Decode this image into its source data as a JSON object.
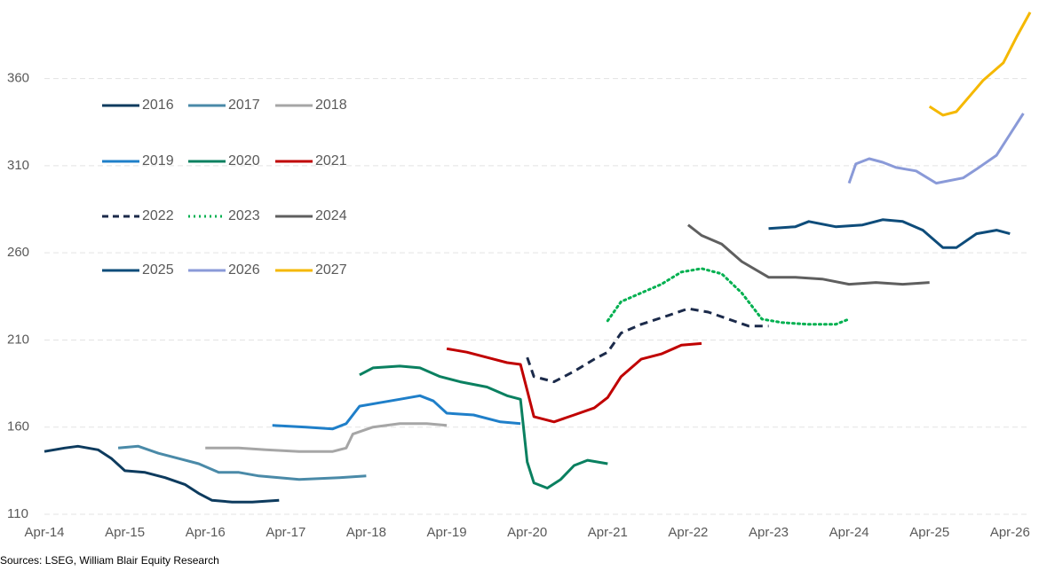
{
  "chart_data": {
    "type": "line",
    "source": "Sources: LSEG, William Blair Equity Research",
    "xlim": [
      "Apr-14",
      "Jul-26"
    ],
    "xticks": [
      "Apr-14",
      "Apr-15",
      "Apr-16",
      "Apr-17",
      "Apr-18",
      "Apr-19",
      "Apr-20",
      "Apr-21",
      "Apr-22",
      "Apr-23",
      "Apr-24",
      "Apr-25",
      "Apr-26"
    ],
    "ylim": [
      110,
      400
    ],
    "yticks": [
      110,
      160,
      210,
      260,
      310,
      360
    ],
    "grid": true,
    "legend": "upper left",
    "series": [
      {
        "name": "2016",
        "color": "#0d3b5e",
        "dash": "solid",
        "x": [
          "Apr-14",
          "Jul-14",
          "Sep-14",
          "Dec-14",
          "Feb-15",
          "Apr-15",
          "Jul-15",
          "Oct-15",
          "Jan-16",
          "Mar-16",
          "May-16",
          "Aug-16",
          "Nov-16",
          "Mar-17"
        ],
        "values": [
          146,
          148,
          149,
          147,
          142,
          135,
          134,
          131,
          127,
          122,
          118,
          117,
          117,
          118
        ]
      },
      {
        "name": "2017",
        "color": "#4a8aa8",
        "dash": "solid",
        "x": [
          "Mar-15",
          "Jun-15",
          "Sep-15",
          "Dec-15",
          "Mar-16",
          "Jun-16",
          "Sep-16",
          "Dec-16",
          "Jun-17",
          "Dec-17",
          "Apr-18"
        ],
        "values": [
          148,
          149,
          145,
          142,
          139,
          134,
          134,
          132,
          130,
          131,
          132
        ]
      },
      {
        "name": "2018",
        "color": "#a6a6a6",
        "dash": "solid",
        "x": [
          "Apr-16",
          "Sep-16",
          "Jan-17",
          "Jun-17",
          "Nov-17",
          "Jan-18",
          "Feb-18",
          "May-18",
          "Sep-18",
          "Jan-19",
          "Apr-19"
        ],
        "values": [
          148,
          148,
          147,
          146,
          146,
          148,
          156,
          160,
          162,
          162,
          161
        ]
      },
      {
        "name": "2019",
        "color": "#1f7fc9",
        "dash": "solid",
        "x": [
          "Feb-17",
          "Jul-17",
          "Nov-17",
          "Jan-18",
          "Mar-18",
          "Jun-18",
          "Sep-18",
          "Dec-18",
          "Feb-19",
          "Apr-19",
          "Aug-19",
          "Dec-19",
          "Mar-20"
        ],
        "values": [
          161,
          160,
          159,
          162,
          172,
          174,
          176,
          178,
          175,
          168,
          167,
          163,
          162
        ]
      },
      {
        "name": "2020",
        "color": "#0a8060",
        "dash": "solid",
        "x": [
          "Mar-18",
          "May-18",
          "Sep-18",
          "Dec-18",
          "Mar-19",
          "Jun-19",
          "Oct-19",
          "Jan-20",
          "Mar-20",
          "Apr-20",
          "May-20",
          "Jul-20",
          "Sep-20",
          "Nov-20",
          "Jan-21",
          "Apr-21"
        ],
        "values": [
          190,
          194,
          195,
          194,
          189,
          186,
          183,
          178,
          176,
          140,
          128,
          125,
          130,
          138,
          141,
          139
        ]
      },
      {
        "name": "2021",
        "color": "#c00000",
        "dash": "solid",
        "x": [
          "Apr-19",
          "Jul-19",
          "Nov-19",
          "Jan-20",
          "Mar-20",
          "Apr-20",
          "May-20",
          "Aug-20",
          "Nov-20",
          "Feb-21",
          "Apr-21",
          "Jun-21",
          "Sep-21",
          "Dec-21",
          "Mar-22",
          "Jun-22"
        ],
        "values": [
          205,
          203,
          199,
          197,
          196,
          181,
          166,
          163,
          167,
          171,
          177,
          189,
          199,
          202,
          207,
          208
        ]
      },
      {
        "name": "2022",
        "color": "#1b2a4a",
        "dash": "dashed",
        "x": [
          "Apr-20",
          "May-20",
          "Aug-20",
          "Nov-20",
          "Feb-21",
          "Apr-21",
          "Jun-21",
          "Sep-21",
          "Jan-22",
          "Apr-22",
          "Jul-22",
          "Oct-22",
          "Jan-23",
          "Apr-23"
        ],
        "values": [
          200,
          189,
          186,
          192,
          199,
          203,
          214,
          219,
          224,
          228,
          226,
          222,
          218,
          218
        ]
      },
      {
        "name": "2023",
        "color": "#00b050",
        "dash": "dotted",
        "x": [
          "Apr-21",
          "Jun-21",
          "Sep-21",
          "Dec-21",
          "Mar-22",
          "Jun-22",
          "Sep-22",
          "Dec-22",
          "Mar-23",
          "Jun-23",
          "Oct-23",
          "Feb-24",
          "Apr-24"
        ],
        "values": [
          221,
          232,
          237,
          242,
          249,
          251,
          248,
          237,
          222,
          220,
          219,
          219,
          222
        ]
      },
      {
        "name": "2024",
        "color": "#5f5f5f",
        "dash": "solid",
        "x": [
          "Apr-22",
          "Jun-22",
          "Sep-22",
          "Dec-22",
          "Apr-23",
          "Aug-23",
          "Dec-23",
          "Apr-24",
          "Aug-24",
          "Dec-24",
          "Apr-25"
        ],
        "values": [
          276,
          270,
          265,
          255,
          246,
          246,
          245,
          242,
          243,
          242,
          243
        ]
      },
      {
        "name": "2025",
        "color": "#0e4c7a",
        "dash": "solid",
        "x": [
          "Apr-23",
          "Aug-23",
          "Oct-23",
          "Feb-24",
          "Jun-24",
          "Sep-24",
          "Dec-24",
          "Mar-25",
          "Jun-25",
          "Aug-25",
          "Nov-25",
          "Feb-26",
          "Apr-26"
        ],
        "values": [
          274,
          275,
          278,
          275,
          276,
          279,
          278,
          273,
          263,
          263,
          271,
          273,
          271
        ]
      },
      {
        "name": "2026",
        "color": "#8a9ad8",
        "dash": "solid",
        "x": [
          "Apr-24",
          "May-24",
          "Jul-24",
          "Sep-24",
          "Nov-24",
          "Feb-25",
          "May-25",
          "Sep-25",
          "Nov-25",
          "Feb-26",
          "Apr-26",
          "Jun-26"
        ],
        "values": [
          300,
          311,
          314,
          312,
          309,
          307,
          300,
          303,
          308,
          316,
          328,
          340
        ]
      },
      {
        "name": "2027",
        "color": "#f5b800",
        "dash": "solid",
        "x": [
          "Apr-25",
          "Jun-25",
          "Aug-25",
          "Oct-25",
          "Dec-25",
          "Mar-26",
          "May-26",
          "Jul-26"
        ],
        "values": [
          344,
          339,
          341,
          350,
          359,
          369,
          384,
          398
        ]
      }
    ]
  }
}
